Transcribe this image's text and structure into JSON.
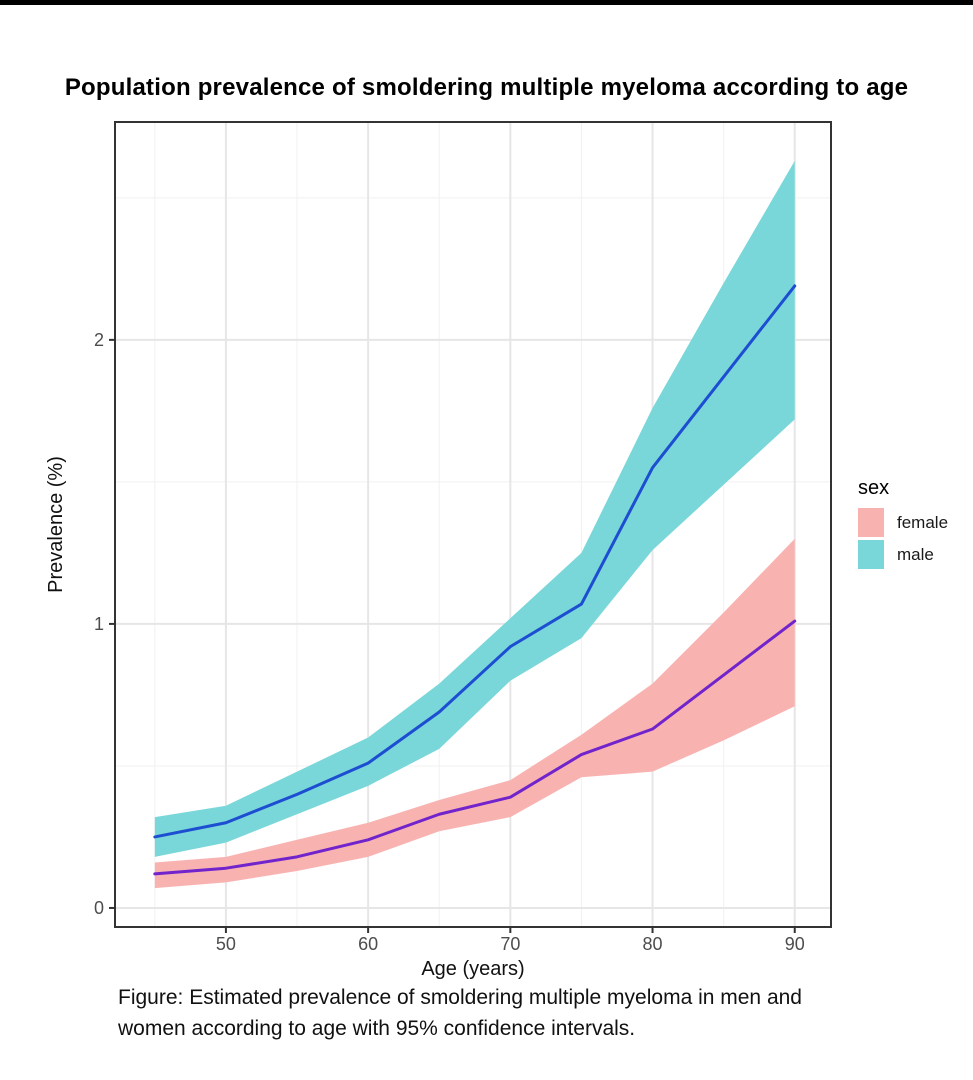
{
  "title": "Population prevalence of smoldering multiple myeloma according to age",
  "legend": {
    "title": "sex",
    "items": [
      {
        "label": "female",
        "color": "#F8B3B1"
      },
      {
        "label": "male",
        "color": "#79D7D9"
      }
    ]
  },
  "caption": {
    "lines": [
      "Figure: Estimated prevalence of smoldering multiple myeloma in men and",
      "women according to age with 95% confidence intervals."
    ]
  },
  "colors": {
    "top_border": "#000000",
    "panel_background": "#ffffff",
    "panel_border": "#333333",
    "gridline_major": "#E6E6E6",
    "gridline_minor": "#F1F1F1",
    "tick_mark": "#333333",
    "tick_label": "#4D4D4D",
    "axis_title": "#111111"
  },
  "chart_data": {
    "type": "area",
    "title": "Population prevalence of smoldering multiple myeloma according to age",
    "xlabel": "Age (years)",
    "ylabel": "Prevalence (%)",
    "x": [
      45,
      50,
      55,
      60,
      65,
      70,
      75,
      80,
      85,
      90
    ],
    "xticks": [
      50,
      60,
      70,
      80,
      90
    ],
    "yticks": [
      0,
      1,
      2
    ],
    "xminor": [
      45,
      55,
      65,
      75,
      85
    ],
    "yminor": [
      0.5,
      1.5,
      2.5
    ],
    "xlim": [
      42.2,
      92.55
    ],
    "ylim": [
      -0.067,
      2.767
    ],
    "grid": true,
    "legend_position": "right",
    "series": [
      {
        "name": "female",
        "line_color": "#7124CC",
        "fill_color": "#F8B3B1",
        "values": [
          0.12,
          0.14,
          0.18,
          0.24,
          0.33,
          0.39,
          0.54,
          0.63,
          0.82,
          1.01
        ],
        "ci_upper": [
          0.16,
          0.18,
          0.24,
          0.3,
          0.38,
          0.45,
          0.61,
          0.79,
          1.04,
          1.3
        ],
        "ci_lower": [
          0.07,
          0.09,
          0.13,
          0.18,
          0.27,
          0.32,
          0.46,
          0.48,
          0.59,
          0.71
        ]
      },
      {
        "name": "male",
        "line_color": "#1D4ED2",
        "fill_color": "#79D7D9",
        "values": [
          0.25,
          0.3,
          0.4,
          0.51,
          0.69,
          0.92,
          1.07,
          1.55,
          1.87,
          2.19
        ],
        "ci_upper": [
          0.32,
          0.36,
          0.48,
          0.6,
          0.79,
          1.02,
          1.25,
          1.76,
          2.2,
          2.63
        ],
        "ci_lower": [
          0.18,
          0.23,
          0.33,
          0.43,
          0.56,
          0.8,
          0.95,
          1.26,
          1.49,
          1.72
        ]
      }
    ]
  }
}
